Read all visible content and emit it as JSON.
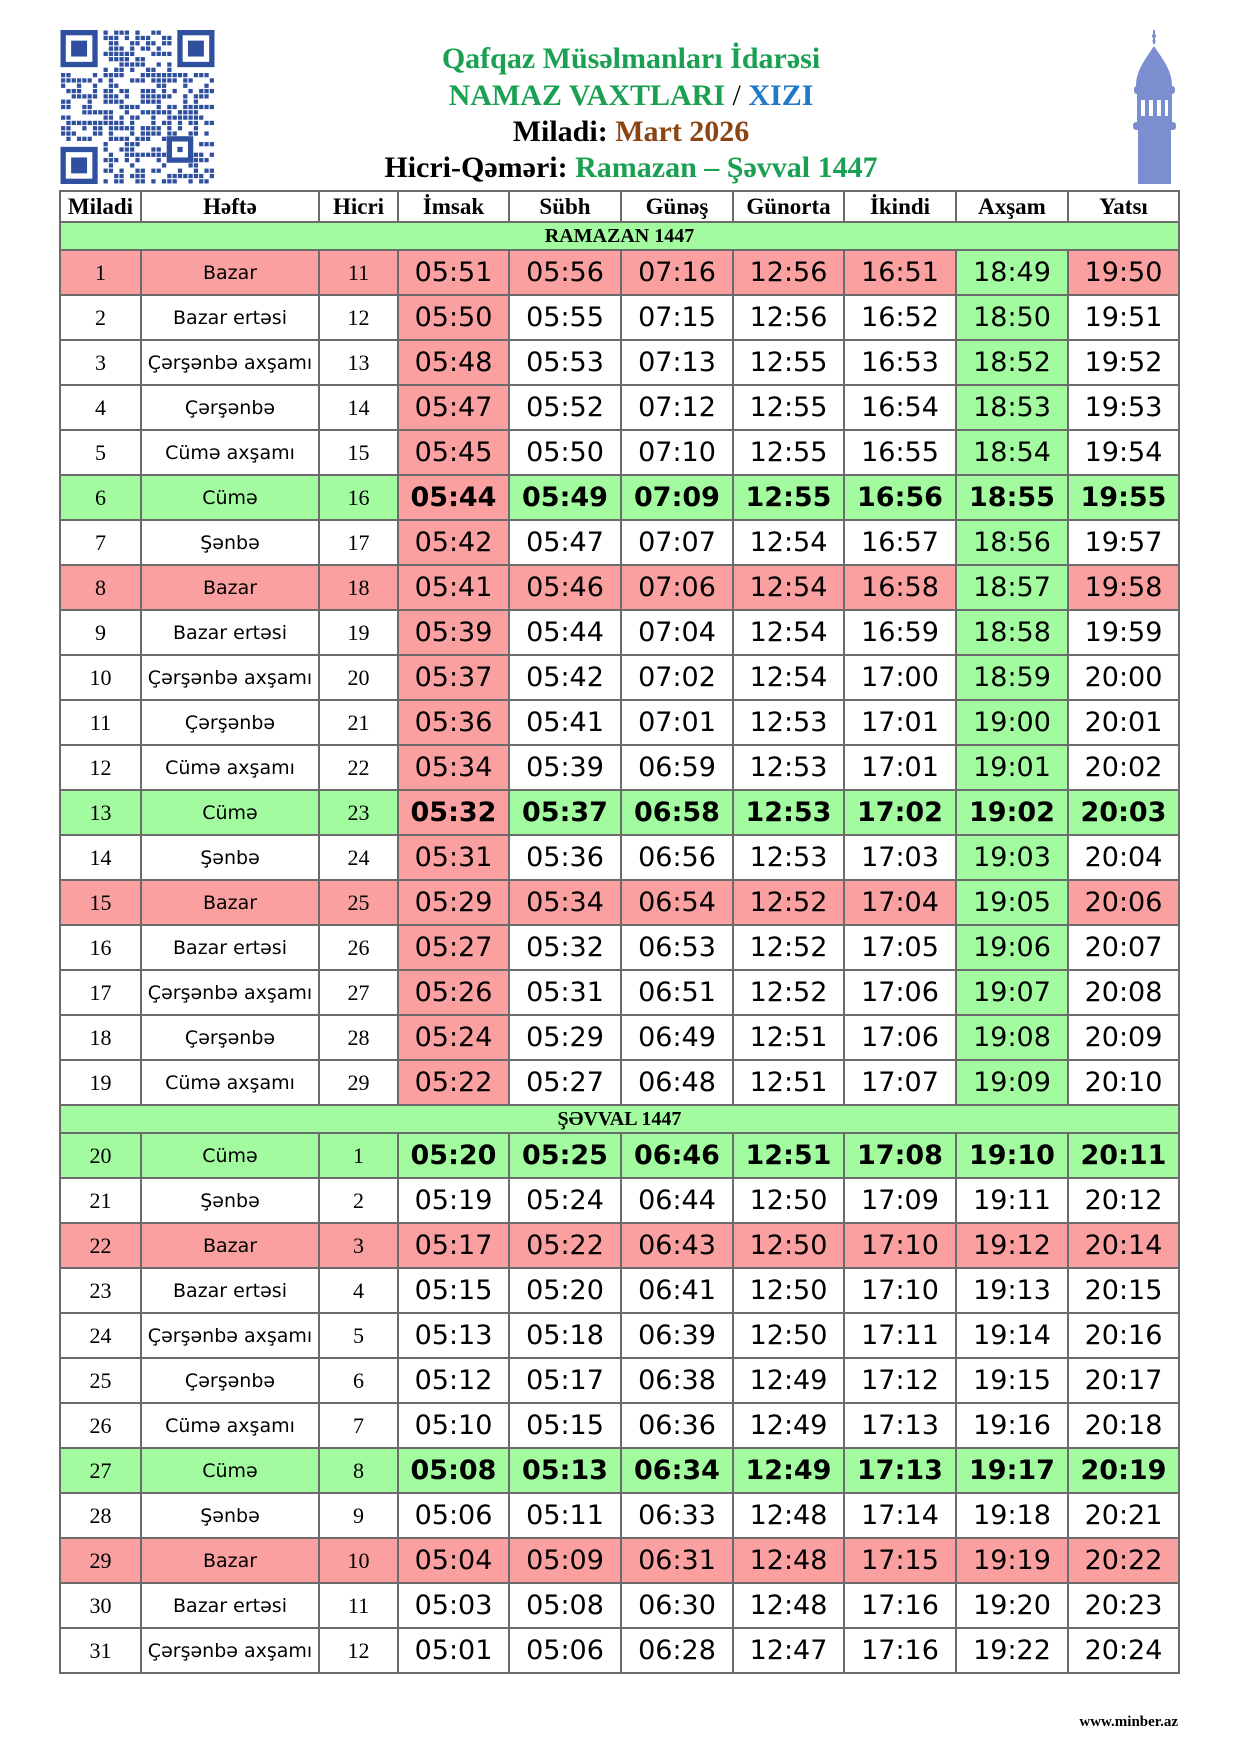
{
  "header": {
    "org": "Qafqaz Müsəlmanları İdarəsi",
    "doc_title": "NAMAZ VAXTLARI",
    "separator": "/",
    "city": "XIZI",
    "gregorian_label": "Miladi:",
    "gregorian_value": "Mart 2026",
    "hijri_label": "Hicri-Qəməri:",
    "hijri_value": "Ramazan – Şəvval 1447"
  },
  "icons": {
    "qr": "qr-code-icon",
    "minaret": "minaret-icon"
  },
  "colors": {
    "title_green": "#1aa052",
    "city_blue": "#1f78c8",
    "month_brown": "#8b4513",
    "highlight_red": "#fba0a0",
    "highlight_green": "#a3fba0"
  },
  "columns": [
    "Miladi",
    "Həftə",
    "Hicri",
    "İmsak",
    "Sübh",
    "Günəş",
    "Günorta",
    "İkindi",
    "Axşam",
    "Yatsı"
  ],
  "sections": [
    {
      "title": "RAMAZAN 1447",
      "rows": [
        {
          "d": "1",
          "w": "Bazar",
          "h": "11",
          "t": [
            "05:51",
            "05:56",
            "07:16",
            "12:56",
            "16:51",
            "18:49",
            "19:50"
          ],
          "k": "sun"
        },
        {
          "d": "2",
          "w": "Bazar ertəsi",
          "h": "12",
          "t": [
            "05:50",
            "05:55",
            "07:15",
            "12:56",
            "16:52",
            "18:50",
            "19:51"
          ],
          "k": "day"
        },
        {
          "d": "3",
          "w": "Çərşənbə axşamı",
          "h": "13",
          "t": [
            "05:48",
            "05:53",
            "07:13",
            "12:55",
            "16:53",
            "18:52",
            "19:52"
          ],
          "k": "day"
        },
        {
          "d": "4",
          "w": "Çərşənbə",
          "h": "14",
          "t": [
            "05:47",
            "05:52",
            "07:12",
            "12:55",
            "16:54",
            "18:53",
            "19:53"
          ],
          "k": "day"
        },
        {
          "d": "5",
          "w": "Cümə axşamı",
          "h": "15",
          "t": [
            "05:45",
            "05:50",
            "07:10",
            "12:55",
            "16:55",
            "18:54",
            "19:54"
          ],
          "k": "day"
        },
        {
          "d": "6",
          "w": "Cümə",
          "h": "16",
          "t": [
            "05:44",
            "05:49",
            "07:09",
            "12:55",
            "16:56",
            "18:55",
            "19:55"
          ],
          "k": "fri"
        },
        {
          "d": "7",
          "w": "Şənbə",
          "h": "17",
          "t": [
            "05:42",
            "05:47",
            "07:07",
            "12:54",
            "16:57",
            "18:56",
            "19:57"
          ],
          "k": "day"
        },
        {
          "d": "8",
          "w": "Bazar",
          "h": "18",
          "t": [
            "05:41",
            "05:46",
            "07:06",
            "12:54",
            "16:58",
            "18:57",
            "19:58"
          ],
          "k": "sun"
        },
        {
          "d": "9",
          "w": "Bazar ertəsi",
          "h": "19",
          "t": [
            "05:39",
            "05:44",
            "07:04",
            "12:54",
            "16:59",
            "18:58",
            "19:59"
          ],
          "k": "day"
        },
        {
          "d": "10",
          "w": "Çərşənbə axşamı",
          "h": "20",
          "t": [
            "05:37",
            "05:42",
            "07:02",
            "12:54",
            "17:00",
            "18:59",
            "20:00"
          ],
          "k": "day"
        },
        {
          "d": "11",
          "w": "Çərşənbə",
          "h": "21",
          "t": [
            "05:36",
            "05:41",
            "07:01",
            "12:53",
            "17:01",
            "19:00",
            "20:01"
          ],
          "k": "day"
        },
        {
          "d": "12",
          "w": "Cümə axşamı",
          "h": "22",
          "t": [
            "05:34",
            "05:39",
            "06:59",
            "12:53",
            "17:01",
            "19:01",
            "20:02"
          ],
          "k": "day"
        },
        {
          "d": "13",
          "w": "Cümə",
          "h": "23",
          "t": [
            "05:32",
            "05:37",
            "06:58",
            "12:53",
            "17:02",
            "19:02",
            "20:03"
          ],
          "k": "fri"
        },
        {
          "d": "14",
          "w": "Şənbə",
          "h": "24",
          "t": [
            "05:31",
            "05:36",
            "06:56",
            "12:53",
            "17:03",
            "19:03",
            "20:04"
          ],
          "k": "day"
        },
        {
          "d": "15",
          "w": "Bazar",
          "h": "25",
          "t": [
            "05:29",
            "05:34",
            "06:54",
            "12:52",
            "17:04",
            "19:05",
            "20:06"
          ],
          "k": "sun"
        },
        {
          "d": "16",
          "w": "Bazar ertəsi",
          "h": "26",
          "t": [
            "05:27",
            "05:32",
            "06:53",
            "12:52",
            "17:05",
            "19:06",
            "20:07"
          ],
          "k": "day"
        },
        {
          "d": "17",
          "w": "Çərşənbə axşamı",
          "h": "27",
          "t": [
            "05:26",
            "05:31",
            "06:51",
            "12:52",
            "17:06",
            "19:07",
            "20:08"
          ],
          "k": "day"
        },
        {
          "d": "18",
          "w": "Çərşənbə",
          "h": "28",
          "t": [
            "05:24",
            "05:29",
            "06:49",
            "12:51",
            "17:06",
            "19:08",
            "20:09"
          ],
          "k": "day"
        },
        {
          "d": "19",
          "w": "Cümə axşamı",
          "h": "29",
          "t": [
            "05:22",
            "05:27",
            "06:48",
            "12:51",
            "17:07",
            "19:09",
            "20:10"
          ],
          "k": "day"
        }
      ]
    },
    {
      "title": "ŞƏVVAL 1447",
      "rows": [
        {
          "d": "20",
          "w": "Cümə",
          "h": "1",
          "t": [
            "05:20",
            "05:25",
            "06:46",
            "12:51",
            "17:08",
            "19:10",
            "20:11"
          ],
          "k": "fri"
        },
        {
          "d": "21",
          "w": "Şənbə",
          "h": "2",
          "t": [
            "05:19",
            "05:24",
            "06:44",
            "12:50",
            "17:09",
            "19:11",
            "20:12"
          ],
          "k": "day"
        },
        {
          "d": "22",
          "w": "Bazar",
          "h": "3",
          "t": [
            "05:17",
            "05:22",
            "06:43",
            "12:50",
            "17:10",
            "19:12",
            "20:14"
          ],
          "k": "sun"
        },
        {
          "d": "23",
          "w": "Bazar ertəsi",
          "h": "4",
          "t": [
            "05:15",
            "05:20",
            "06:41",
            "12:50",
            "17:10",
            "19:13",
            "20:15"
          ],
          "k": "day"
        },
        {
          "d": "24",
          "w": "Çərşənbə axşamı",
          "h": "5",
          "t": [
            "05:13",
            "05:18",
            "06:39",
            "12:50",
            "17:11",
            "19:14",
            "20:16"
          ],
          "k": "day"
        },
        {
          "d": "25",
          "w": "Çərşənbə",
          "h": "6",
          "t": [
            "05:12",
            "05:17",
            "06:38",
            "12:49",
            "17:12",
            "19:15",
            "20:17"
          ],
          "k": "day"
        },
        {
          "d": "26",
          "w": "Cümə axşamı",
          "h": "7",
          "t": [
            "05:10",
            "05:15",
            "06:36",
            "12:49",
            "17:13",
            "19:16",
            "20:18"
          ],
          "k": "day"
        },
        {
          "d": "27",
          "w": "Cümə",
          "h": "8",
          "t": [
            "05:08",
            "05:13",
            "06:34",
            "12:49",
            "17:13",
            "19:17",
            "20:19"
          ],
          "k": "fri"
        },
        {
          "d": "28",
          "w": "Şənbə",
          "h": "9",
          "t": [
            "05:06",
            "05:11",
            "06:33",
            "12:48",
            "17:14",
            "19:18",
            "20:21"
          ],
          "k": "day"
        },
        {
          "d": "29",
          "w": "Bazar",
          "h": "10",
          "t": [
            "05:04",
            "05:09",
            "06:31",
            "12:48",
            "17:15",
            "19:19",
            "20:22"
          ],
          "k": "sun"
        },
        {
          "d": "30",
          "w": "Bazar ertəsi",
          "h": "11",
          "t": [
            "05:03",
            "05:08",
            "06:30",
            "12:48",
            "17:16",
            "19:20",
            "20:23"
          ],
          "k": "day"
        },
        {
          "d": "31",
          "w": "Çərşənbə axşamı",
          "h": "12",
          "t": [
            "05:01",
            "05:06",
            "06:28",
            "12:47",
            "17:16",
            "19:22",
            "20:24"
          ],
          "k": "day"
        }
      ]
    }
  ],
  "footer": "www.minber.az"
}
